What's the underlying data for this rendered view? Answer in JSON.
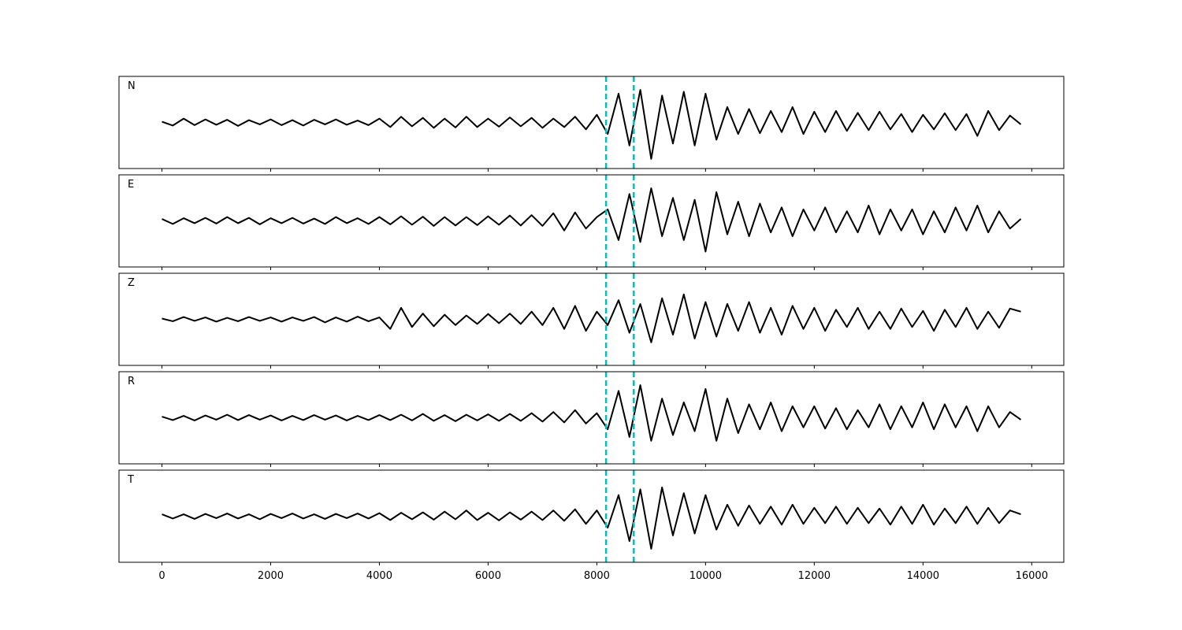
{
  "chart_data": [
    {
      "type": "line",
      "label": "N",
      "xlim": [
        -790,
        16590
      ],
      "ylim": [
        -1.2,
        1.2
      ],
      "x": [
        0,
        200,
        400,
        600,
        800,
        1000,
        1200,
        1400,
        1600,
        1800,
        2000,
        2200,
        2400,
        2600,
        2800,
        3000,
        3200,
        3400,
        3600,
        3800,
        4000,
        4200,
        4400,
        4600,
        4800,
        5000,
        5200,
        5400,
        5600,
        5800,
        6000,
        6200,
        6400,
        6600,
        6800,
        7000,
        7200,
        7400,
        7600,
        7800,
        8000,
        8200,
        8400,
        8600,
        8800,
        9000,
        9200,
        9400,
        9600,
        9800,
        10000,
        10200,
        10400,
        10600,
        10800,
        11000,
        11200,
        11400,
        11600,
        11800,
        12000,
        12200,
        12400,
        12600,
        12800,
        13000,
        13200,
        13400,
        13600,
        13800,
        14000,
        14200,
        14400,
        14600,
        14800,
        15000,
        15200,
        15400,
        15600,
        15800
      ],
      "series": [
        {
          "color": "#000000",
          "values": [
            0.02,
            -0.08,
            0.1,
            -0.07,
            0.08,
            -0.06,
            0.07,
            -0.09,
            0.06,
            -0.05,
            0.08,
            -0.07,
            0.06,
            -0.08,
            0.07,
            -0.05,
            0.08,
            -0.06,
            0.05,
            -0.07,
            0.1,
            -0.12,
            0.15,
            -0.1,
            0.12,
            -0.14,
            0.1,
            -0.13,
            0.15,
            -0.12,
            0.1,
            -0.11,
            0.13,
            -0.1,
            0.12,
            -0.14,
            0.1,
            -0.12,
            0.15,
            -0.18,
            0.2,
            -0.3,
            0.75,
            -0.6,
            0.85,
            -0.95,
            0.7,
            -0.55,
            0.8,
            -0.6,
            0.75,
            -0.45,
            0.4,
            -0.3,
            0.35,
            -0.28,
            0.3,
            -0.25,
            0.4,
            -0.3,
            0.28,
            -0.25,
            0.3,
            -0.22,
            0.25,
            -0.2,
            0.28,
            -0.18,
            0.22,
            -0.25,
            0.2,
            -0.18,
            0.24,
            -0.2,
            0.22,
            -0.35,
            0.3,
            -0.2,
            0.18,
            -0.05
          ]
        }
      ],
      "vlines": {
        "x": [
          8170,
          8680
        ],
        "color": "#00bfbf"
      }
    },
    {
      "type": "line",
      "label": "E",
      "xlim": [
        -790,
        16590
      ],
      "ylim": [
        -1.2,
        1.2
      ],
      "x": [
        0,
        200,
        400,
        600,
        800,
        1000,
        1200,
        1400,
        1600,
        1800,
        2000,
        2200,
        2400,
        2600,
        2800,
        3000,
        3200,
        3400,
        3600,
        3800,
        4000,
        4200,
        4400,
        4600,
        4800,
        5000,
        5200,
        5400,
        5600,
        5800,
        6000,
        6200,
        6400,
        6600,
        6800,
        7000,
        7200,
        7400,
        7600,
        7800,
        8000,
        8200,
        8400,
        8600,
        8800,
        9000,
        9200,
        9400,
        9600,
        9800,
        10000,
        10200,
        10400,
        10600,
        10800,
        11000,
        11200,
        11400,
        11600,
        11800,
        12000,
        12200,
        12400,
        12600,
        12800,
        13000,
        13200,
        13400,
        13600,
        13800,
        14000,
        14200,
        14400,
        14600,
        14800,
        15000,
        15200,
        15400,
        15600,
        15800
      ],
      "series": [
        {
          "color": "#000000",
          "values": [
            0.05,
            -0.08,
            0.07,
            -0.06,
            0.08,
            -0.07,
            0.1,
            -0.06,
            0.08,
            -0.09,
            0.07,
            -0.06,
            0.08,
            -0.07,
            0.06,
            -0.08,
            0.1,
            -0.06,
            0.07,
            -0.08,
            0.1,
            -0.09,
            0.12,
            -0.1,
            0.11,
            -0.13,
            0.1,
            -0.12,
            0.1,
            -0.11,
            0.12,
            -0.1,
            0.14,
            -0.12,
            0.15,
            -0.13,
            0.2,
            -0.25,
            0.22,
            -0.2,
            0.1,
            0.3,
            -0.5,
            0.7,
            -0.55,
            0.85,
            -0.4,
            0.6,
            -0.5,
            0.55,
            -0.8,
            0.75,
            -0.35,
            0.5,
            -0.4,
            0.45,
            -0.3,
            0.35,
            -0.4,
            0.3,
            -0.25,
            0.35,
            -0.3,
            0.25,
            -0.3,
            0.4,
            -0.35,
            0.3,
            -0.25,
            0.3,
            -0.35,
            0.25,
            -0.3,
            0.35,
            -0.25,
            0.4,
            -0.3,
            0.25,
            -0.2,
            0.05
          ]
        }
      ],
      "vlines": {
        "x": [
          8170,
          8680
        ],
        "color": "#00bfbf"
      }
    },
    {
      "type": "line",
      "label": "Z",
      "xlim": [
        -790,
        16590
      ],
      "ylim": [
        -1.2,
        1.2
      ],
      "x": [
        0,
        200,
        400,
        600,
        800,
        1000,
        1200,
        1400,
        1600,
        1800,
        2000,
        2200,
        2400,
        2600,
        2800,
        3000,
        3200,
        3400,
        3600,
        3800,
        4000,
        4200,
        4400,
        4600,
        4800,
        5000,
        5200,
        5400,
        5600,
        5800,
        6000,
        6200,
        6400,
        6600,
        6800,
        7000,
        7200,
        7400,
        7600,
        7800,
        8000,
        8200,
        8400,
        8600,
        8800,
        9000,
        9200,
        9400,
        9600,
        9800,
        10000,
        10200,
        10400,
        10600,
        10800,
        11000,
        11200,
        11400,
        11600,
        11800,
        12000,
        12200,
        12400,
        12600,
        12800,
        13000,
        13200,
        13400,
        13600,
        13800,
        14000,
        14200,
        14400,
        14600,
        14800,
        15000,
        15200,
        15400,
        15600,
        15800
      ],
      "series": [
        {
          "color": "#000000",
          "values": [
            0.02,
            -0.05,
            0.06,
            -0.04,
            0.05,
            -0.06,
            0.04,
            -0.05,
            0.06,
            -0.04,
            0.05,
            -0.06,
            0.05,
            -0.04,
            0.06,
            -0.08,
            0.05,
            -0.06,
            0.07,
            -0.05,
            0.05,
            -0.25,
            0.3,
            -0.2,
            0.15,
            -0.18,
            0.12,
            -0.15,
            0.1,
            -0.12,
            0.14,
            -0.1,
            0.15,
            -0.12,
            0.2,
            -0.15,
            0.3,
            -0.25,
            0.35,
            -0.3,
            0.2,
            -0.15,
            0.5,
            -0.35,
            0.4,
            -0.6,
            0.55,
            -0.4,
            0.65,
            -0.5,
            0.45,
            -0.45,
            0.4,
            -0.3,
            0.45,
            -0.35,
            0.3,
            -0.4,
            0.35,
            -0.25,
            0.3,
            -0.3,
            0.25,
            -0.2,
            0.3,
            -0.25,
            0.2,
            -0.25,
            0.28,
            -0.2,
            0.22,
            -0.3,
            0.25,
            -0.2,
            0.3,
            -0.25,
            0.2,
            -0.22,
            0.28,
            0.2
          ]
        }
      ],
      "vlines": {
        "x": [
          8170,
          8680
        ],
        "color": "#00bfbf"
      }
    },
    {
      "type": "line",
      "label": "R",
      "xlim": [
        -790,
        16590
      ],
      "ylim": [
        -1.2,
        1.2
      ],
      "x": [
        0,
        200,
        400,
        600,
        800,
        1000,
        1200,
        1400,
        1600,
        1800,
        2000,
        2200,
        2400,
        2600,
        2800,
        3000,
        3200,
        3400,
        3600,
        3800,
        4000,
        4200,
        4400,
        4600,
        4800,
        5000,
        5200,
        5400,
        5600,
        5800,
        6000,
        6200,
        6400,
        6600,
        6800,
        7000,
        7200,
        7400,
        7600,
        7800,
        8000,
        8200,
        8400,
        8600,
        8800,
        9000,
        9200,
        9400,
        9600,
        9800,
        10000,
        10200,
        10400,
        10600,
        10800,
        11000,
        11200,
        11400,
        11600,
        11800,
        12000,
        12200,
        12400,
        12600,
        12800,
        13000,
        13200,
        13400,
        13600,
        13800,
        14000,
        14200,
        14400,
        14600,
        14800,
        15000,
        15200,
        15400,
        15600,
        15800
      ],
      "series": [
        {
          "color": "#000000",
          "values": [
            0.03,
            -0.06,
            0.05,
            -0.07,
            0.06,
            -0.05,
            0.08,
            -0.06,
            0.07,
            -0.05,
            0.06,
            -0.07,
            0.05,
            -0.06,
            0.07,
            -0.05,
            0.06,
            -0.07,
            0.05,
            -0.06,
            0.07,
            -0.06,
            0.08,
            -0.07,
            0.1,
            -0.08,
            0.07,
            -0.09,
            0.08,
            -0.07,
            0.09,
            -0.08,
            0.1,
            -0.08,
            0.12,
            -0.1,
            0.15,
            -0.12,
            0.2,
            -0.15,
            0.12,
            -0.3,
            0.7,
            -0.5,
            0.85,
            -0.6,
            0.5,
            -0.45,
            0.4,
            -0.35,
            0.75,
            -0.6,
            0.5,
            -0.4,
            0.35,
            -0.3,
            0.4,
            -0.35,
            0.3,
            -0.25,
            0.3,
            -0.28,
            0.25,
            -0.3,
            0.2,
            -0.25,
            0.35,
            -0.3,
            0.3,
            -0.25,
            0.4,
            -0.3,
            0.35,
            -0.25,
            0.3,
            -0.35,
            0.3,
            -0.25,
            0.15,
            -0.05
          ]
        }
      ],
      "vlines": {
        "x": [
          8170,
          8680
        ],
        "color": "#00bfbf"
      }
    },
    {
      "type": "line",
      "label": "T",
      "xlim": [
        -790,
        16590
      ],
      "ylim": [
        -1.2,
        1.2
      ],
      "x": [
        0,
        200,
        400,
        600,
        800,
        1000,
        1200,
        1400,
        1600,
        1800,
        2000,
        2200,
        2400,
        2600,
        2800,
        3000,
        3200,
        3400,
        3600,
        3800,
        4000,
        4200,
        4400,
        4600,
        4800,
        5000,
        5200,
        5400,
        5600,
        5800,
        6000,
        6200,
        6400,
        6600,
        6800,
        7000,
        7200,
        7400,
        7600,
        7800,
        8000,
        8200,
        8400,
        8600,
        8800,
        9000,
        9200,
        9400,
        9600,
        9800,
        10000,
        10200,
        10400,
        10600,
        10800,
        11000,
        11200,
        11400,
        11600,
        11800,
        12000,
        12200,
        12400,
        12600,
        12800,
        13000,
        13200,
        13400,
        13600,
        13800,
        14000,
        14200,
        14400,
        14600,
        14800,
        15000,
        15200,
        15400,
        15600,
        15800
      ],
      "series": [
        {
          "color": "#000000",
          "values": [
            0.05,
            -0.06,
            0.05,
            -0.07,
            0.06,
            -0.05,
            0.07,
            -0.06,
            0.05,
            -0.08,
            0.06,
            -0.05,
            0.07,
            -0.06,
            0.05,
            -0.07,
            0.06,
            -0.05,
            0.07,
            -0.06,
            0.08,
            -0.1,
            0.09,
            -0.08,
            0.1,
            -0.09,
            0.12,
            -0.08,
            0.15,
            -0.1,
            0.09,
            -0.11,
            0.1,
            -0.09,
            0.12,
            -0.1,
            0.15,
            -0.12,
            0.18,
            -0.2,
            0.15,
            -0.3,
            0.55,
            -0.65,
            0.7,
            -0.85,
            0.75,
            -0.5,
            0.6,
            -0.45,
            0.55,
            -0.35,
            0.3,
            -0.25,
            0.28,
            -0.2,
            0.25,
            -0.22,
            0.3,
            -0.2,
            0.22,
            -0.18,
            0.25,
            -0.2,
            0.22,
            -0.18,
            0.2,
            -0.22,
            0.25,
            -0.2,
            0.3,
            -0.22,
            0.2,
            -0.18,
            0.25,
            -0.2,
            0.22,
            -0.18,
            0.15,
            0.05
          ]
        }
      ],
      "vlines": {
        "x": [
          8170,
          8680
        ],
        "color": "#00bfbf"
      },
      "xticks": [
        0,
        2000,
        4000,
        6000,
        8000,
        10000,
        12000,
        14000,
        16000
      ]
    }
  ]
}
